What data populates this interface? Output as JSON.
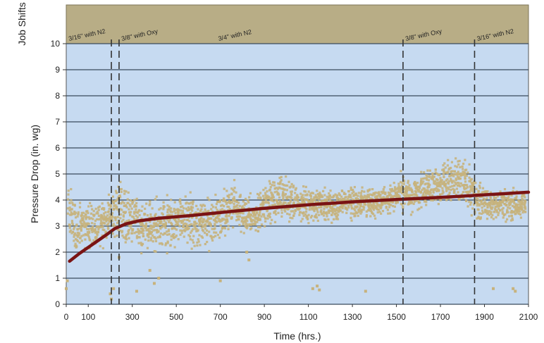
{
  "chart_data": {
    "type": "scatter",
    "title": "",
    "xlabel": "Time (hrs.)",
    "ylabel": "Pressure Drop (in. wg)",
    "band_label": "Job Shifts",
    "xlim": [
      0,
      2100
    ],
    "ylim": [
      0,
      10
    ],
    "x_ticks": [
      0,
      100,
      300,
      500,
      700,
      900,
      1100,
      1300,
      1500,
      1700,
      1900,
      2100
    ],
    "y_ticks": [
      0,
      1,
      2,
      3,
      4,
      5,
      6,
      7,
      8,
      9,
      10
    ],
    "grid": "horizontal",
    "colors": {
      "plot_bg": "#c6daf1",
      "band_bg": "#b8ad86",
      "scatter": "#c7b27c",
      "trend": "#7a1414",
      "grid": "#3a4b5c"
    },
    "job_shifts": [
      {
        "x": 0,
        "label": "3/16\" with N2"
      },
      {
        "x": 205,
        "label": ""
      },
      {
        "x": 240,
        "label": "3/8\" with Oxy"
      },
      {
        "x": 680,
        "label": "3/4\" with N2"
      },
      {
        "x": 1530,
        "label": "3/8\" with Oxy"
      },
      {
        "x": 1855,
        "label": "3/16\" with N2"
      }
    ],
    "shift_lines": [
      205,
      240,
      1530,
      1855
    ],
    "series": [
      {
        "kind": "scatter_band",
        "points": [
          [
            10,
            3.8,
            0.5
          ],
          [
            40,
            3.0,
            0.7
          ],
          [
            80,
            3.0,
            0.6
          ],
          [
            120,
            3.0,
            0.6
          ],
          [
            160,
            3.1,
            0.6
          ],
          [
            200,
            3.3,
            0.6
          ],
          [
            230,
            3.8,
            0.9
          ],
          [
            260,
            3.4,
            0.8
          ],
          [
            300,
            3.2,
            0.8
          ],
          [
            360,
            3.0,
            0.7
          ],
          [
            420,
            3.0,
            0.7
          ],
          [
            500,
            3.1,
            0.7
          ],
          [
            580,
            3.2,
            0.7
          ],
          [
            650,
            3.1,
            0.6
          ],
          [
            720,
            3.4,
            0.7
          ],
          [
            760,
            4.0,
            0.6
          ],
          [
            800,
            3.4,
            0.5
          ],
          [
            860,
            3.4,
            0.5
          ],
          [
            920,
            3.8,
            0.6
          ],
          [
            980,
            4.1,
            0.6
          ],
          [
            1040,
            3.8,
            0.5
          ],
          [
            1100,
            3.8,
            0.5
          ],
          [
            1160,
            3.8,
            0.5
          ],
          [
            1220,
            3.7,
            0.4
          ],
          [
            1280,
            3.9,
            0.4
          ],
          [
            1340,
            3.9,
            0.4
          ],
          [
            1400,
            3.9,
            0.4
          ],
          [
            1460,
            4.0,
            0.4
          ],
          [
            1520,
            4.3,
            0.5
          ],
          [
            1580,
            4.3,
            0.5
          ],
          [
            1640,
            4.4,
            0.5
          ],
          [
            1700,
            4.6,
            0.5
          ],
          [
            1760,
            4.8,
            0.6
          ],
          [
            1820,
            4.6,
            0.6
          ],
          [
            1870,
            4.0,
            0.5
          ],
          [
            1940,
            3.8,
            0.4
          ],
          [
            2000,
            3.8,
            0.4
          ],
          [
            2060,
            3.8,
            0.4
          ],
          [
            2090,
            3.8,
            0.4
          ]
        ],
        "outliers": [
          [
            0,
            0.6
          ],
          [
            5,
            0.9
          ],
          [
            200,
            0.4
          ],
          [
            205,
            0.2
          ],
          [
            215,
            0.6
          ],
          [
            240,
            1.8
          ],
          [
            320,
            0.5
          ],
          [
            380,
            1.3
          ],
          [
            400,
            0.8
          ],
          [
            420,
            1.0
          ],
          [
            700,
            0.9
          ],
          [
            820,
            2.0
          ],
          [
            830,
            1.7
          ],
          [
            1120,
            0.6
          ],
          [
            1140,
            0.7
          ],
          [
            1150,
            0.55
          ],
          [
            1360,
            0.5
          ],
          [
            1940,
            0.6
          ],
          [
            2030,
            0.6
          ],
          [
            2040,
            0.5
          ]
        ]
      },
      {
        "kind": "trend_line",
        "points": [
          [
            15,
            1.65
          ],
          [
            60,
            1.95
          ],
          [
            120,
            2.3
          ],
          [
            180,
            2.65
          ],
          [
            220,
            2.9
          ],
          [
            270,
            3.08
          ],
          [
            330,
            3.2
          ],
          [
            420,
            3.3
          ],
          [
            560,
            3.4
          ],
          [
            700,
            3.52
          ],
          [
            900,
            3.68
          ],
          [
            1100,
            3.82
          ],
          [
            1300,
            3.93
          ],
          [
            1500,
            4.02
          ],
          [
            1700,
            4.1
          ],
          [
            1900,
            4.2
          ],
          [
            2100,
            4.3
          ]
        ]
      }
    ]
  }
}
